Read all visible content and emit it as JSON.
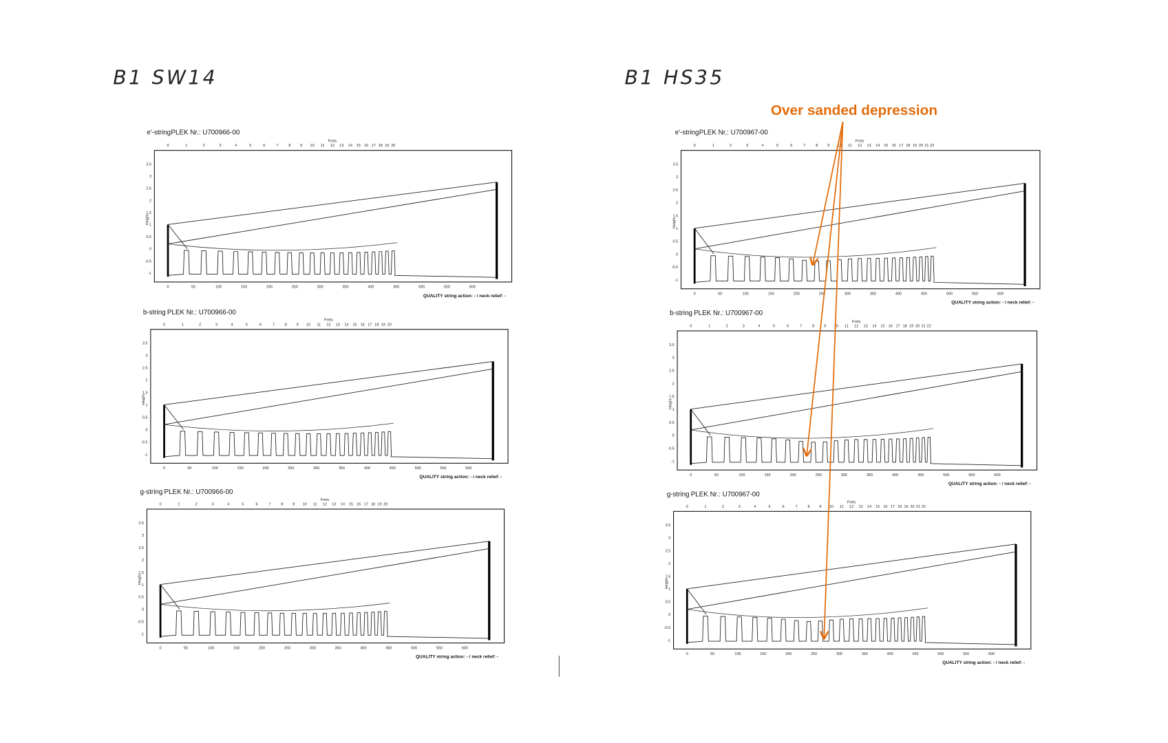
{
  "handwritten": {
    "left": "B1 SW14",
    "right": "B1 HS35"
  },
  "annotation": "Over sanded depression",
  "axis": {
    "frets_title": "Frets",
    "y_title": "Height",
    "y_ticks": [
      -1,
      -0.5,
      0,
      0.5,
      1,
      1.5,
      2,
      2.5,
      3,
      3.5
    ],
    "x_ticks": [
      0,
      50,
      100,
      150,
      200,
      250,
      300,
      350,
      400,
      450,
      500,
      550,
      600
    ]
  },
  "panels": [
    {
      "string": "e'-string",
      "plek": "PLEK Nr.: U700966-00",
      "frets": [
        0,
        1,
        2,
        3,
        4,
        5,
        6,
        7,
        8,
        9,
        10,
        11,
        12,
        13,
        14,
        15,
        16,
        17,
        18,
        19,
        20
      ],
      "footer": "QUALITY string action: - / neck relief: -"
    },
    {
      "string": "b-string",
      "plek": "PLEK Nr.: U700966-00",
      "frets": [
        0,
        1,
        2,
        3,
        4,
        5,
        6,
        7,
        8,
        9,
        10,
        11,
        12,
        13,
        14,
        15,
        16,
        17,
        18,
        19,
        20
      ],
      "footer": "QUALITY string action: - / neck relief: -"
    },
    {
      "string": "g-string",
      "plek": "PLEK Nr.: U700966-00",
      "frets": [
        0,
        1,
        2,
        3,
        4,
        5,
        6,
        7,
        8,
        9,
        10,
        11,
        12,
        13,
        14,
        15,
        16,
        17,
        18,
        19,
        20
      ],
      "footer": "QUALITY string action: - / neck relief: -"
    },
    {
      "string": "e'-string",
      "plek": "PLEK Nr.: U700967-00",
      "frets": [
        0,
        1,
        2,
        3,
        4,
        5,
        6,
        7,
        8,
        9,
        10,
        11,
        12,
        13,
        14,
        15,
        16,
        17,
        18,
        19,
        20,
        21,
        22
      ],
      "footer": "QUALITY string action: - / neck relief: -"
    },
    {
      "string": "b-string",
      "plek": "PLEK Nr.: U700967-00",
      "frets": [
        0,
        1,
        2,
        3,
        4,
        5,
        6,
        7,
        8,
        9,
        10,
        11,
        12,
        13,
        14,
        15,
        16,
        17,
        18,
        19,
        20,
        21,
        22
      ],
      "footer": "QUALITY string action: - / neck relief: -"
    },
    {
      "string": "g-string",
      "plek": "PLEK Nr.: U700967-00",
      "frets": [
        0,
        1,
        2,
        3,
        4,
        5,
        6,
        7,
        8,
        9,
        10,
        11,
        12,
        13,
        14,
        15,
        16,
        17,
        18,
        19,
        20,
        21,
        22
      ],
      "footer": "QUALITY string action: - / neck relief: -"
    }
  ]
}
